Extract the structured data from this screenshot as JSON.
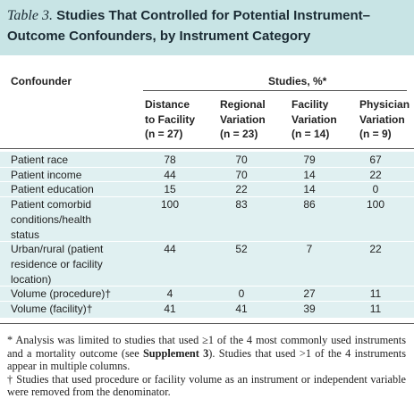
{
  "table_label": "Table 3.",
  "title_lines": [
    "Studies That Controlled for Potential Instrument–",
    "Outcome Confounders, by Instrument Category"
  ],
  "table": {
    "row_header": "Confounder",
    "group_header": "Studies, %*",
    "columns": [
      {
        "lines": [
          "Distance",
          "to Facility",
          "(n = 27)"
        ]
      },
      {
        "lines": [
          "Regional",
          "Variation",
          "(n = 23)"
        ]
      },
      {
        "lines": [
          "Facility",
          "Variation",
          "(n = 14)"
        ]
      },
      {
        "lines": [
          "Physician",
          "Variation",
          "(n = 9)"
        ]
      }
    ],
    "rows": [
      {
        "label": [
          "Patient race"
        ],
        "values": [
          78,
          70,
          79,
          67
        ]
      },
      {
        "label": [
          "Patient income"
        ],
        "values": [
          44,
          70,
          14,
          22
        ]
      },
      {
        "label": [
          "Patient education"
        ],
        "values": [
          15,
          22,
          14,
          0
        ]
      },
      {
        "label": [
          "Patient comorbid",
          "conditions/health",
          "status"
        ],
        "values": [
          100,
          83,
          86,
          100
        ]
      },
      {
        "label": [
          "Urban/rural (patient",
          "residence or facility",
          "location)"
        ],
        "values": [
          44,
          52,
          7,
          22
        ]
      },
      {
        "label": [
          "Volume (procedure)†"
        ],
        "values": [
          4,
          0,
          27,
          11
        ]
      },
      {
        "label": [
          "Volume (facility)†"
        ],
        "values": [
          41,
          41,
          39,
          11
        ]
      }
    ]
  },
  "footnotes": [
    {
      "parts": [
        "* Analysis was limited to studies that used ≥1 of the 4 most commonly used instruments and a mortality outcome (see ",
        "Supplement 3",
        "). Studies that used >1 of the 4 instruments appear in multiple columns."
      ]
    },
    {
      "parts": [
        "† Studies that used procedure or facility volume as an instrument or independent variable were removed from the denominator."
      ]
    }
  ]
}
